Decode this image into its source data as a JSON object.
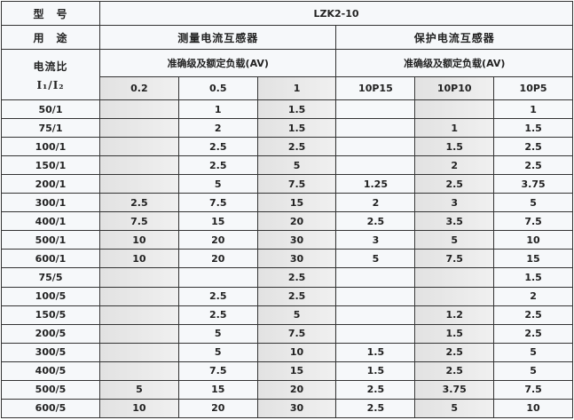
{
  "header": {
    "model_label": "型　号",
    "model_value": "LZK2-10",
    "usage_label": "用　途",
    "measurement_label": "测量电流互感器",
    "protection_label": "保护电流互感器",
    "ratio_label": "电流比",
    "ratio_symbol": "I₁/I₂",
    "accuracy_label_measure": "准确级及额定负载(AV)",
    "accuracy_label_protect": "准确级及额定负载(AV)",
    "classes": [
      "0.2",
      "0.5",
      "1",
      "10P15",
      "10P10",
      "10P5"
    ]
  },
  "rows": [
    {
      "ratio": "50/1",
      "values": [
        "",
        "1",
        "1.5",
        "",
        "",
        "1"
      ]
    },
    {
      "ratio": "75/1",
      "values": [
        "",
        "2",
        "1.5",
        "",
        "1",
        "1.5"
      ]
    },
    {
      "ratio": "100/1",
      "values": [
        "",
        "2.5",
        "2.5",
        "",
        "1.5",
        "2.5"
      ]
    },
    {
      "ratio": "150/1",
      "values": [
        "",
        "2.5",
        "5",
        "",
        "2",
        "2.5"
      ]
    },
    {
      "ratio": "200/1",
      "values": [
        "",
        "5",
        "7.5",
        "1.25",
        "2.5",
        "3.75"
      ]
    },
    {
      "ratio": "300/1",
      "values": [
        "2.5",
        "7.5",
        "15",
        "2",
        "3",
        "5"
      ]
    },
    {
      "ratio": "400/1",
      "values": [
        "7.5",
        "15",
        "20",
        "2.5",
        "3.5",
        "7.5"
      ]
    },
    {
      "ratio": "500/1",
      "values": [
        "10",
        "20",
        "30",
        "3",
        "5",
        "10"
      ]
    },
    {
      "ratio": "600/1",
      "values": [
        "10",
        "20",
        "30",
        "5",
        "7.5",
        "15"
      ]
    },
    {
      "ratio": "75/5",
      "values": [
        "",
        "",
        "2.5",
        "",
        "",
        "1.5"
      ]
    },
    {
      "ratio": "100/5",
      "values": [
        "",
        "2.5",
        "2.5",
        "",
        "",
        "2"
      ]
    },
    {
      "ratio": "150/5",
      "values": [
        "",
        "2.5",
        "5",
        "",
        "1.2",
        "2.5"
      ]
    },
    {
      "ratio": "200/5",
      "values": [
        "",
        "5",
        "7.5",
        "",
        "1.5",
        "2.5"
      ]
    },
    {
      "ratio": "300/5",
      "values": [
        "",
        "5",
        "10",
        "1.5",
        "2.5",
        "5"
      ]
    },
    {
      "ratio": "400/5",
      "values": [
        "",
        "7.5",
        "15",
        "1.5",
        "2.5",
        "5"
      ]
    },
    {
      "ratio": "500/5",
      "values": [
        "5",
        "15",
        "20",
        "2.5",
        "3.75",
        "7.5"
      ]
    },
    {
      "ratio": "600/5",
      "values": [
        "10",
        "20",
        "30",
        "2.5",
        "5",
        "10"
      ]
    }
  ],
  "shaded_columns": [
    0,
    2,
    4
  ]
}
